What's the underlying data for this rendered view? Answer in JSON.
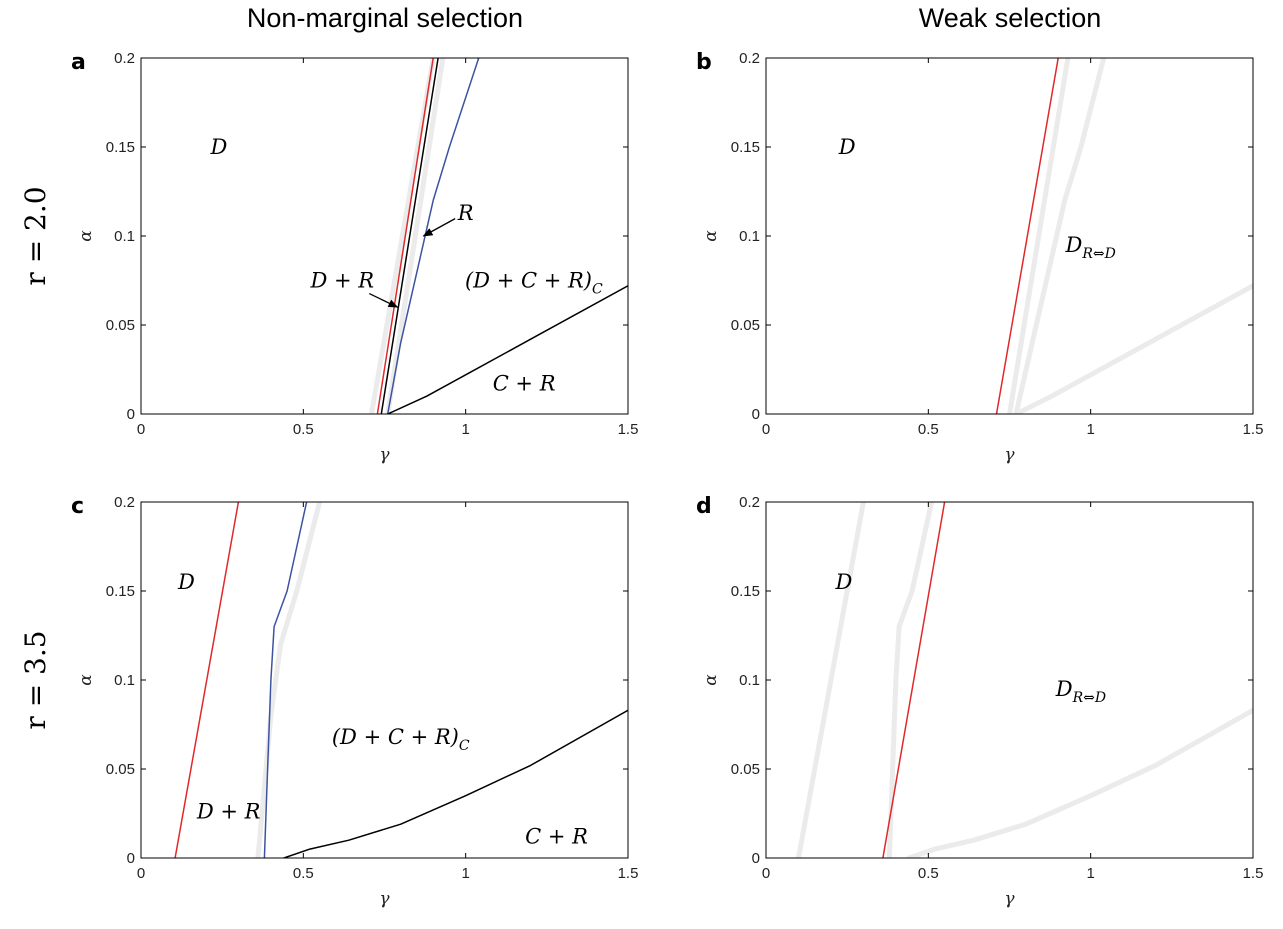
{
  "column_titles": [
    "Non-marginal selection",
    "Weak selection"
  ],
  "row_labels": [
    "r = 2.0",
    "r = 3.5"
  ],
  "colors": {
    "red": "#e0292b",
    "blue": "#3c54a0",
    "black": "#000000",
    "gray": "#ebebeb"
  },
  "chart_data": [
    {
      "panel": "a",
      "type": "line",
      "xlabel": "γ",
      "ylabel": "α",
      "xlim": [
        0,
        1.5
      ],
      "ylim": [
        0,
        0.2
      ],
      "xticks": [
        "0",
        "0.5",
        "1",
        "1.5"
      ],
      "yticks": [
        "0",
        "0.05",
        "0.1",
        "0.15",
        "0.2"
      ],
      "series": [
        {
          "color": "gray",
          "width": 5,
          "x": [
            0.71,
            0.9
          ],
          "y": [
            0,
            0.2
          ]
        },
        {
          "color": "gray",
          "width": 5,
          "x": [
            0.76,
            0.93
          ],
          "y": [
            0,
            0.2
          ]
        },
        {
          "color": "red",
          "width": 1.5,
          "x": [
            0.728,
            0.9
          ],
          "y": [
            0,
            0.2
          ]
        },
        {
          "color": "black",
          "width": 1.5,
          "x": [
            0.74,
            0.915
          ],
          "y": [
            0,
            0.2
          ]
        },
        {
          "color": "blue",
          "width": 1.5,
          "x": [
            0.76,
            0.8,
            0.85,
            0.9,
            0.95,
            1.04
          ],
          "y": [
            0,
            0.04,
            0.08,
            0.12,
            0.15,
            0.2
          ]
        },
        {
          "color": "black",
          "width": 1.5,
          "x": [
            0.76,
            0.88,
            1.0,
            1.2,
            1.5
          ],
          "y": [
            0,
            0.01,
            0.022,
            0.042,
            0.072
          ]
        }
      ],
      "annotations": [
        {
          "text": "D",
          "x": 0.24,
          "y": 0.15
        },
        {
          "text": "R",
          "x": 1.0,
          "y": 0.113,
          "arrow_to": [
            0.87,
            0.1
          ]
        },
        {
          "text": "D + R",
          "x": 0.62,
          "y": 0.075,
          "arrow_to": [
            0.79,
            0.06
          ]
        },
        {
          "text": "(D + C + R)",
          "sub": "C",
          "x": 1.21,
          "y": 0.075
        },
        {
          "text": "C + R",
          "x": 1.18,
          "y": 0.017
        }
      ]
    },
    {
      "panel": "b",
      "type": "line",
      "xlabel": "γ",
      "ylabel": "α",
      "xlim": [
        0,
        1.5
      ],
      "ylim": [
        0,
        0.2
      ],
      "xticks": [
        "0",
        "0.5",
        "1",
        "1.5"
      ],
      "yticks": [
        "0",
        "0.05",
        "0.1",
        "0.15",
        "0.2"
      ],
      "series": [
        {
          "color": "gray",
          "width": 5,
          "x": [
            0.75,
            0.93
          ],
          "y": [
            0,
            0.2
          ]
        },
        {
          "color": "gray",
          "width": 5,
          "x": [
            0.77,
            0.82,
            0.87,
            0.92,
            0.97,
            1.04
          ],
          "y": [
            0,
            0.04,
            0.08,
            0.12,
            0.15,
            0.2
          ]
        },
        {
          "color": "gray",
          "width": 5,
          "x": [
            0.77,
            0.88,
            1.0,
            1.2,
            1.5
          ],
          "y": [
            0,
            0.01,
            0.022,
            0.042,
            0.072
          ]
        },
        {
          "color": "red",
          "width": 1.5,
          "x": [
            0.71,
            0.9
          ],
          "y": [
            0,
            0.2
          ]
        }
      ],
      "annotations": [
        {
          "text": "D",
          "x": 0.25,
          "y": 0.15
        },
        {
          "text": "D",
          "sub": "R⇔D",
          "x": 1.0,
          "y": 0.095
        }
      ]
    },
    {
      "panel": "c",
      "type": "line",
      "xlabel": "γ",
      "ylabel": "α",
      "xlim": [
        0,
        1.5
      ],
      "ylim": [
        0,
        0.2
      ],
      "xticks": [
        "0",
        "0.5",
        "1",
        "1.5"
      ],
      "yticks": [
        "0",
        "0.05",
        "0.1",
        "0.15",
        "0.2"
      ],
      "series": [
        {
          "color": "gray",
          "width": 5,
          "x": [
            0.36,
            0.38,
            0.4,
            0.43,
            0.48,
            0.55
          ],
          "y": [
            0,
            0.04,
            0.08,
            0.12,
            0.15,
            0.2
          ]
        },
        {
          "color": "red",
          "width": 1.5,
          "x": [
            0.105,
            0.3
          ],
          "y": [
            0,
            0.2
          ]
        },
        {
          "color": "blue",
          "width": 1.5,
          "x": [
            0.38,
            0.39,
            0.4,
            0.41,
            0.45,
            0.51
          ],
          "y": [
            0,
            0.05,
            0.1,
            0.13,
            0.15,
            0.2
          ]
        },
        {
          "color": "black",
          "width": 1.5,
          "x": [
            0.44,
            0.52,
            0.64,
            0.8,
            1.0,
            1.2,
            1.5
          ],
          "y": [
            0,
            0.005,
            0.01,
            0.019,
            0.035,
            0.052,
            0.083
          ]
        }
      ],
      "annotations": [
        {
          "text": "D",
          "x": 0.14,
          "y": 0.155
        },
        {
          "text": "(D + C + R)",
          "sub": "C",
          "x": 0.8,
          "y": 0.068
        },
        {
          "text": "D + R",
          "x": 0.27,
          "y": 0.026
        },
        {
          "text": "C + R",
          "x": 1.28,
          "y": 0.012
        }
      ]
    },
    {
      "panel": "d",
      "type": "line",
      "xlabel": "γ",
      "ylabel": "α",
      "xlim": [
        0,
        1.5
      ],
      "ylim": [
        0,
        0.2
      ],
      "xticks": [
        "0",
        "0.5",
        "1",
        "1.5"
      ],
      "yticks": [
        "0",
        "0.05",
        "0.1",
        "0.15",
        "0.2"
      ],
      "series": [
        {
          "color": "gray",
          "width": 5,
          "x": [
            0.1,
            0.3
          ],
          "y": [
            0,
            0.2
          ]
        },
        {
          "color": "gray",
          "width": 5,
          "x": [
            0.38,
            0.39,
            0.4,
            0.41,
            0.45,
            0.51
          ],
          "y": [
            0,
            0.05,
            0.1,
            0.13,
            0.15,
            0.2
          ]
        },
        {
          "color": "gray",
          "width": 5,
          "x": [
            0.44,
            0.52,
            0.64,
            0.8,
            1.0,
            1.2,
            1.5
          ],
          "y": [
            0,
            0.005,
            0.01,
            0.019,
            0.035,
            0.052,
            0.083
          ]
        },
        {
          "color": "red",
          "width": 1.5,
          "x": [
            0.36,
            0.55
          ],
          "y": [
            0,
            0.2
          ]
        }
      ],
      "annotations": [
        {
          "text": "D",
          "x": 0.24,
          "y": 0.155
        },
        {
          "text": "D",
          "sub": "R⇔D",
          "x": 0.97,
          "y": 0.095
        }
      ]
    }
  ]
}
